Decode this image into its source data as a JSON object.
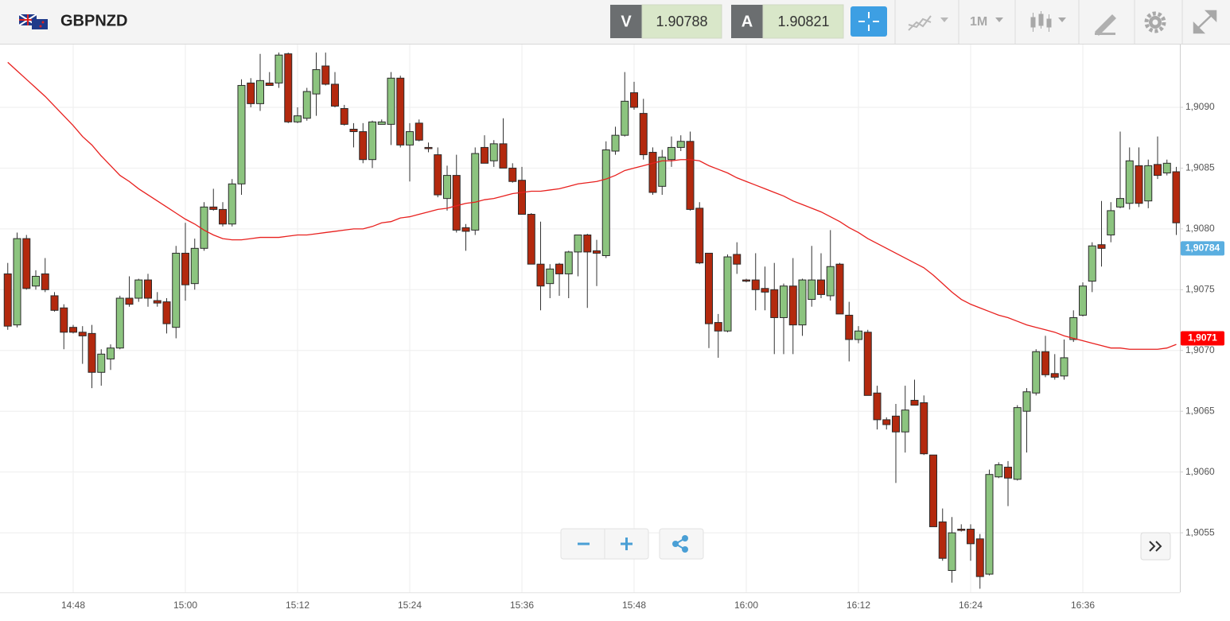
{
  "header": {
    "symbol": "GBPNZD",
    "bid_label": "V",
    "bid": 1.90788,
    "ask_label": "A",
    "ask": 1.90821,
    "timeframe": "1M"
  },
  "chart_data": {
    "type": "candlestick",
    "categories": [
      null,
      null,
      null,
      null,
      null,
      null,
      null,
      "14:48",
      null,
      null,
      null,
      null,
      null,
      null,
      null,
      null,
      null,
      null,
      null,
      "15:00",
      null,
      null,
      null,
      null,
      null,
      null,
      null,
      null,
      null,
      null,
      null,
      "15:12",
      null,
      null,
      null,
      null,
      null,
      null,
      null,
      null,
      null,
      null,
      null,
      "15:24",
      null,
      null,
      null,
      null,
      null,
      null,
      null,
      null,
      null,
      null,
      null,
      "15:36",
      null,
      null,
      null,
      null,
      null,
      null,
      null,
      null,
      null,
      null,
      null,
      "15:48",
      null,
      null,
      null,
      null,
      null,
      null,
      null,
      null,
      null,
      null,
      null,
      "16:00",
      null,
      null,
      null,
      null,
      null,
      null,
      null,
      null,
      null,
      null,
      null,
      "16:12",
      null,
      null,
      null,
      null,
      null,
      null,
      null,
      null,
      null,
      null,
      null,
      "16:24",
      null,
      null,
      null,
      null,
      null,
      null,
      null,
      null,
      null,
      null,
      null,
      "16:36",
      null,
      null,
      null,
      null,
      null,
      null,
      null,
      null,
      null,
      null
    ],
    "series": [
      {
        "up_color": "#8cc47f",
        "down_color": "#b3290e",
        "open": [
          1.90763,
          1.90721,
          1.90792,
          1.90753,
          1.90763,
          1.90745,
          1.90735,
          1.90719,
          1.90715,
          1.90714,
          1.90682,
          1.90693,
          1.90702,
          1.90743,
          1.90743,
          1.90758,
          1.90741,
          1.9074,
          1.90719,
          1.9078,
          1.90755,
          1.90784,
          1.90818,
          1.90816,
          1.90804,
          1.90837,
          1.9092,
          1.90903,
          1.9092,
          1.9092,
          1.90944,
          1.90888,
          1.90891,
          1.90911,
          1.90934,
          1.90919,
          1.90899,
          1.90882,
          1.9088,
          1.90857,
          1.90886,
          1.90886,
          1.90924,
          1.90869,
          1.90887,
          1.90867,
          1.90861,
          1.90825,
          1.90844,
          1.90801,
          1.90799,
          1.90867,
          1.90856,
          1.9087,
          1.9085,
          1.9084,
          1.90812,
          1.90771,
          1.90755,
          1.90771,
          1.90763,
          1.90781,
          1.90795,
          1.90782,
          1.90778,
          1.90864,
          1.90877,
          1.90912,
          1.90895,
          1.90863,
          1.90835,
          1.90857,
          1.90867,
          1.90872,
          1.90817,
          1.9078,
          1.90723,
          1.90716,
          1.90779,
          1.90758,
          1.90758,
          1.90751,
          1.9075,
          1.90727,
          1.90753,
          1.90721,
          1.90742,
          1.90758,
          1.90745,
          1.90771,
          1.90729,
          1.90709,
          1.90715,
          1.90665,
          1.90643,
          1.90646,
          1.90633,
          1.90659,
          1.90657,
          1.90614,
          1.90559,
          1.90519,
          1.90553,
          1.90553,
          1.90545,
          1.90516,
          1.90596,
          1.90604,
          1.90594,
          1.9065,
          1.90665,
          1.90699,
          1.90681,
          1.90679,
          1.90709,
          1.90729,
          1.90757,
          1.90787,
          1.90795,
          1.90818,
          1.90821,
          1.90852,
          1.90823,
          1.90853,
          1.90846,
          1.90847
        ],
        "high": [
          1.90772,
          1.90797,
          1.90795,
          1.90766,
          1.90776,
          1.90748,
          1.90738,
          1.90721,
          1.9072,
          1.90721,
          1.90701,
          1.90705,
          1.90745,
          1.90761,
          1.90759,
          1.90763,
          1.90748,
          1.90743,
          1.90786,
          1.90805,
          1.90792,
          1.90822,
          1.90833,
          1.90822,
          1.90841,
          1.90923,
          1.90924,
          1.90944,
          1.90929,
          1.90945,
          1.90945,
          1.909,
          1.90916,
          1.90945,
          1.90945,
          1.90929,
          1.90902,
          1.90887,
          1.90887,
          1.90889,
          1.9089,
          1.90929,
          1.90926,
          1.90887,
          1.9089,
          1.90871,
          1.90867,
          1.90852,
          1.90861,
          1.90804,
          1.90867,
          1.90877,
          1.90873,
          1.90891,
          1.90854,
          1.90851,
          1.90813,
          1.90806,
          1.90771,
          1.90772,
          1.90782,
          1.90795,
          1.90796,
          1.90791,
          1.90872,
          1.90884,
          1.90929,
          1.90921,
          1.90907,
          1.90867,
          1.90865,
          1.90876,
          1.90877,
          1.9088,
          1.90822,
          1.9078,
          1.9073,
          1.90779,
          1.90789,
          1.90759,
          1.9078,
          1.90769,
          1.90772,
          1.90755,
          1.90776,
          1.90759,
          1.90786,
          1.9078,
          1.90799,
          1.90772,
          1.9074,
          1.9072,
          1.90717,
          1.90671,
          1.90645,
          1.90656,
          1.90671,
          1.90676,
          1.90663,
          1.90614,
          1.9057,
          1.90563,
          1.90557,
          1.90557,
          1.90549,
          1.90602,
          1.90608,
          1.90609,
          1.90655,
          1.90669,
          1.90701,
          1.90712,
          1.90697,
          1.90709,
          1.90733,
          1.90756,
          1.90789,
          1.90823,
          1.90822,
          1.9088,
          1.90867,
          1.90867,
          1.90857,
          1.90876,
          1.90857,
          1.90851
        ],
        "low": [
          1.90717,
          1.90719,
          1.9075,
          1.9075,
          1.90748,
          1.90732,
          1.90701,
          1.90714,
          1.90689,
          1.90669,
          1.90671,
          1.90684,
          1.90701,
          1.90736,
          1.9074,
          1.90736,
          1.90736,
          1.90714,
          1.9071,
          1.90741,
          1.9075,
          1.90782,
          1.90815,
          1.90802,
          1.90802,
          1.90828,
          1.909,
          1.90897,
          1.90918,
          1.90916,
          1.90887,
          1.90887,
          1.90889,
          1.90893,
          1.90918,
          1.909,
          1.90885,
          1.90867,
          1.90854,
          1.9085,
          1.90886,
          1.90869,
          1.90867,
          1.90839,
          1.90872,
          1.90863,
          1.90826,
          1.90815,
          1.90797,
          1.90782,
          1.90795,
          1.90854,
          1.90851,
          1.9085,
          1.90838,
          1.90812,
          1.90771,
          1.90733,
          1.90743,
          1.90745,
          1.90743,
          1.90761,
          1.90735,
          1.90753,
          1.90776,
          1.90861,
          1.90876,
          1.90898,
          1.90857,
          1.90828,
          1.90828,
          1.90851,
          1.90864,
          1.90815,
          1.90771,
          1.90702,
          1.90694,
          1.90715,
          1.90763,
          1.90756,
          1.90733,
          1.90733,
          1.90697,
          1.90697,
          1.90697,
          1.90712,
          1.90736,
          1.90743,
          1.90741,
          1.9073,
          1.90691,
          1.90706,
          1.90663,
          1.90635,
          1.90635,
          1.90591,
          1.90616,
          1.90655,
          1.90614,
          1.90555,
          1.90527,
          1.90509,
          1.90551,
          1.90527,
          1.90504,
          1.90515,
          1.90595,
          1.90572,
          1.90593,
          1.90616,
          1.90663,
          1.90678,
          1.90676,
          1.90676,
          1.90707,
          1.90728,
          1.90748,
          1.90769,
          1.90789,
          1.90817,
          1.90816,
          1.90818,
          1.90817,
          1.90841,
          1.90844,
          1.90795
        ],
        "close": [
          1.9072,
          1.90792,
          1.90751,
          1.90761,
          1.9075,
          1.90733,
          1.90715,
          1.90715,
          1.90712,
          1.90682,
          1.90697,
          1.90702,
          1.90743,
          1.90738,
          1.90758,
          1.90743,
          1.90739,
          1.90722,
          1.9078,
          1.90754,
          1.90784,
          1.90818,
          1.90816,
          1.90804,
          1.90837,
          1.90918,
          1.90903,
          1.90922,
          1.90918,
          1.90943,
          1.90888,
          1.90893,
          1.90913,
          1.90931,
          1.90919,
          1.90901,
          1.90886,
          1.9088,
          1.90857,
          1.90888,
          1.90888,
          1.90924,
          1.90869,
          1.9088,
          1.90873,
          1.90866,
          1.90828,
          1.90844,
          1.90799,
          1.90798,
          1.90862,
          1.90854,
          1.9087,
          1.9085,
          1.90839,
          1.90812,
          1.90771,
          1.90753,
          1.90767,
          1.90763,
          1.90781,
          1.90795,
          1.90781,
          1.9078,
          1.90865,
          1.90877,
          1.90905,
          1.909,
          1.90861,
          1.9083,
          1.90859,
          1.90867,
          1.90872,
          1.90816,
          1.90772,
          1.90722,
          1.90716,
          1.90777,
          1.90771,
          1.90757,
          1.9075,
          1.90748,
          1.90727,
          1.90753,
          1.90721,
          1.90758,
          1.90758,
          1.90746,
          1.90769,
          1.9073,
          1.90709,
          1.90716,
          1.90663,
          1.90643,
          1.90639,
          1.90633,
          1.90651,
          1.90655,
          1.90615,
          1.90555,
          1.90529,
          1.9055,
          1.90552,
          1.90541,
          1.90514,
          1.90598,
          1.90606,
          1.90595,
          1.90653,
          1.90666,
          1.90699,
          1.9068,
          1.90678,
          1.90694,
          1.90727,
          1.90753,
          1.90786,
          1.90784,
          1.90815,
          1.90825,
          1.90856,
          1.90821,
          1.90852,
          1.90844,
          1.90854,
          1.90805
        ]
      }
    ],
    "lines": [
      {
        "color": "#e8201e",
        "values": [
          1.90937,
          1.9093,
          1.90923,
          1.90916,
          1.90909,
          1.90901,
          1.90893,
          1.90885,
          1.90876,
          1.90869,
          1.9086,
          1.90852,
          1.90844,
          1.90839,
          1.90833,
          1.90828,
          1.90823,
          1.90818,
          1.90813,
          1.90808,
          1.90804,
          1.90799,
          1.90795,
          1.90792,
          1.90791,
          1.90791,
          1.90792,
          1.90793,
          1.90793,
          1.90793,
          1.90794,
          1.90795,
          1.90795,
          1.90796,
          1.90797,
          1.90798,
          1.90799,
          1.908,
          1.908,
          1.90802,
          1.90805,
          1.90806,
          1.90809,
          1.9081,
          1.90812,
          1.90814,
          1.90816,
          1.90817,
          1.90819,
          1.90821,
          1.90822,
          1.90824,
          1.90825,
          1.90827,
          1.90829,
          1.9083,
          1.90831,
          1.90831,
          1.90832,
          1.90833,
          1.90835,
          1.90837,
          1.90838,
          1.90839,
          1.90841,
          1.90844,
          1.90848,
          1.9085,
          1.90852,
          1.90854,
          1.90856,
          1.90856,
          1.90857,
          1.90857,
          1.90856,
          1.90852,
          1.90849,
          1.90846,
          1.90842,
          1.90839,
          1.90836,
          1.90833,
          1.9083,
          1.90827,
          1.90823,
          1.9082,
          1.90817,
          1.90814,
          1.9081,
          1.90806,
          1.90801,
          1.90797,
          1.90792,
          1.90788,
          1.90784,
          1.9078,
          1.90776,
          1.90772,
          1.90768,
          1.90762,
          1.90755,
          1.90748,
          1.90742,
          1.90738,
          1.90735,
          1.90732,
          1.90729,
          1.90727,
          1.90724,
          1.90721,
          1.90719,
          1.90717,
          1.90715,
          1.90712,
          1.9071,
          1.90708,
          1.90706,
          1.90704,
          1.90702,
          1.90702,
          1.90701,
          1.90701,
          1.90701,
          1.90701,
          1.90702,
          1.90705
        ]
      }
    ],
    "ylim": [
      1.90501,
      1.90951
    ],
    "yticks": [
      {
        "value": 1.9055,
        "label": "1,9055"
      },
      {
        "value": 1.906,
        "label": "1,9060"
      },
      {
        "value": 1.9065,
        "label": "1,9065"
      },
      {
        "value": 1.907,
        "label": "1,9070"
      },
      {
        "value": 1.9075,
        "label": "1,9075"
      },
      {
        "value": 1.908,
        "label": "1,9080"
      },
      {
        "value": 1.9085,
        "label": "1,9085"
      },
      {
        "value": 1.909,
        "label": "1,9090"
      }
    ],
    "grid": true,
    "price_tags": [
      {
        "value": 1.90784,
        "label": "1,90784",
        "color": "#5aaee0"
      },
      {
        "value": 1.9071,
        "label": "1,9071",
        "color": "#ff0000"
      }
    ]
  }
}
